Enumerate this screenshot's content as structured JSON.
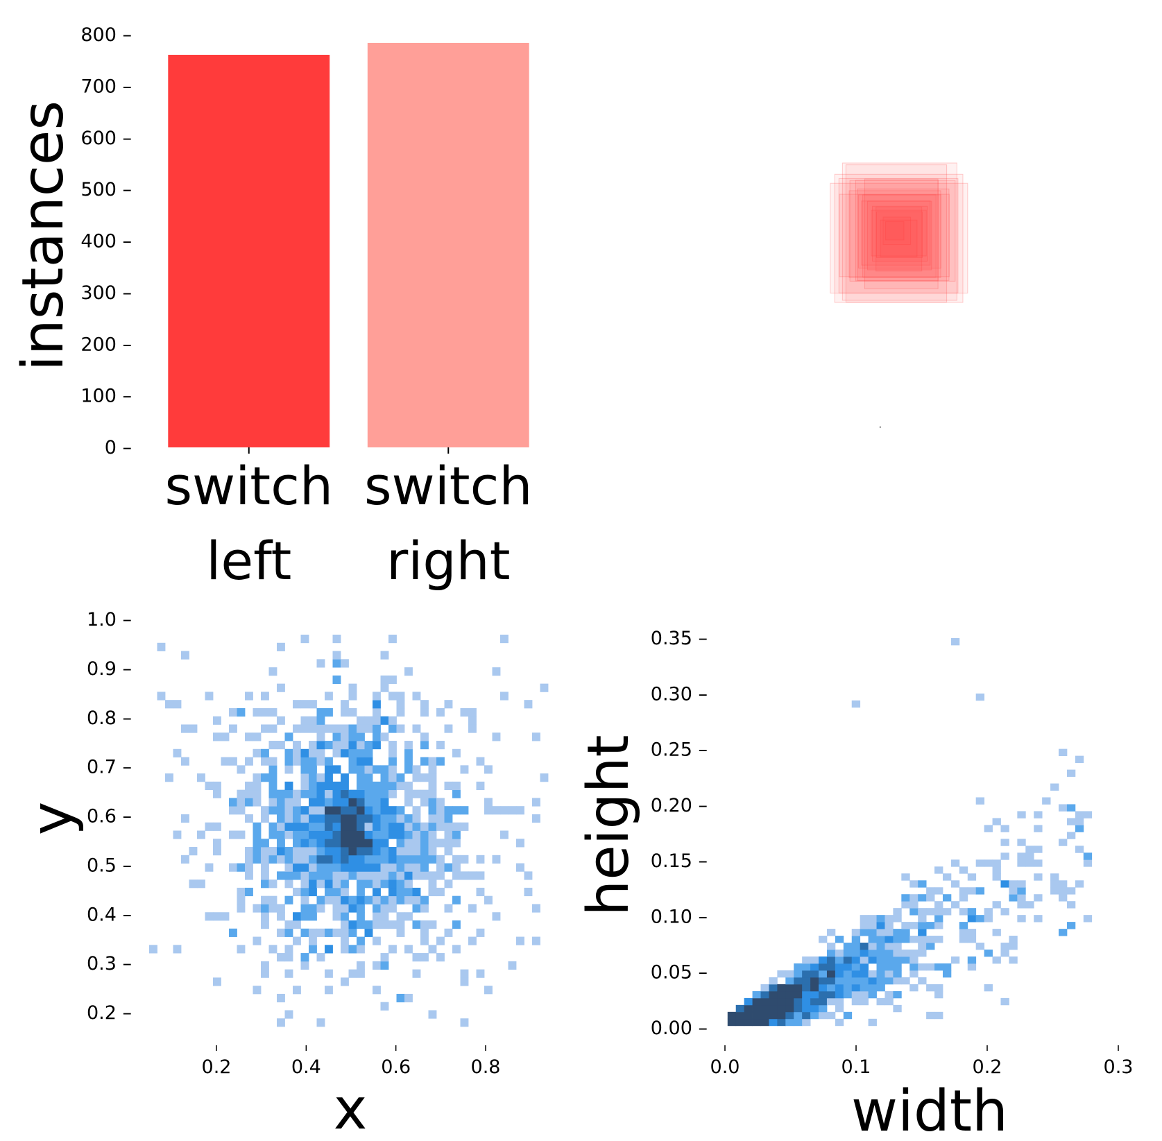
{
  "chart_data": [
    {
      "type": "bar",
      "categories": [
        [
          "switch",
          "left"
        ],
        [
          "switch",
          "right"
        ]
      ],
      "values": [
        761,
        784
      ],
      "colors": [
        "#ff3b3b",
        "#ff9f98"
      ],
      "ylabel": "instances",
      "ylim": [
        0,
        800
      ],
      "yticks": [
        "0",
        "100",
        "200",
        "300",
        "400",
        "500",
        "600",
        "700",
        "800"
      ],
      "yticks_values": [
        0,
        100,
        200,
        300,
        400,
        500,
        600,
        700,
        800
      ]
    },
    {
      "type": "rectangles",
      "description": "overlaid translucent bounding boxes centered near (0.5, 0.5)",
      "color": "#ff3b3b",
      "boxes_wh": [
        [
          0.08,
          0.08
        ],
        [
          0.1,
          0.1
        ],
        [
          0.12,
          0.12
        ],
        [
          0.15,
          0.14
        ],
        [
          0.18,
          0.16
        ],
        [
          0.2,
          0.19
        ],
        [
          0.23,
          0.22
        ],
        [
          0.26,
          0.25
        ],
        [
          0.28,
          0.28
        ],
        [
          0.22,
          0.3
        ],
        [
          0.18,
          0.22
        ],
        [
          0.16,
          0.18
        ],
        [
          0.14,
          0.15
        ],
        [
          0.3,
          0.24
        ],
        [
          0.25,
          0.3
        ],
        [
          0.12,
          0.1
        ],
        [
          0.06,
          0.06
        ],
        [
          0.04,
          0.04
        ],
        [
          0.1,
          0.14
        ],
        [
          0.2,
          0.2
        ],
        [
          0.24,
          0.18
        ],
        [
          0.16,
          0.24
        ]
      ]
    },
    {
      "type": "heatmap",
      "xlabel": "x",
      "ylabel": "y",
      "xticks": [
        "0.2",
        "0.4",
        "0.6",
        "0.8"
      ],
      "xticks_values": [
        0.2,
        0.4,
        0.6,
        0.8
      ],
      "yticks": [
        "0.2",
        "0.3",
        "0.4",
        "0.5",
        "0.6",
        "0.7",
        "0.8",
        "0.9",
        "1.0"
      ],
      "yticks_values": [
        0.2,
        0.3,
        0.4,
        0.5,
        0.6,
        0.7,
        0.8,
        0.9,
        1.0
      ],
      "xlim": [
        0.07,
        0.93
      ],
      "ylim": [
        0.17,
        0.96
      ],
      "center": [
        0.5,
        0.565
      ],
      "spread": [
        0.13,
        0.13
      ],
      "colors": [
        "#a9c8ef",
        "#5aa8ec",
        "#2f8fe4",
        "#2b6fae",
        "#2f4b6e"
      ]
    },
    {
      "type": "heatmap",
      "xlabel": "width",
      "ylabel": "height",
      "xticks": [
        "0.0",
        "0.1",
        "0.2",
        "0.3"
      ],
      "xticks_values": [
        0.0,
        0.1,
        0.2,
        0.3
      ],
      "yticks": [
        "0.00",
        "0.05",
        "0.10",
        "0.15",
        "0.20",
        "0.25",
        "0.30",
        "0.35"
      ],
      "yticks_values": [
        0.0,
        0.05,
        0.1,
        0.15,
        0.2,
        0.25,
        0.3,
        0.35
      ],
      "xlim": [
        0.002,
        0.305
      ],
      "ylim": [
        0.002,
        0.35
      ],
      "colors": [
        "#a9c8ef",
        "#5aa8ec",
        "#2f8fe4",
        "#2b6fae",
        "#2f4b6e"
      ]
    }
  ]
}
